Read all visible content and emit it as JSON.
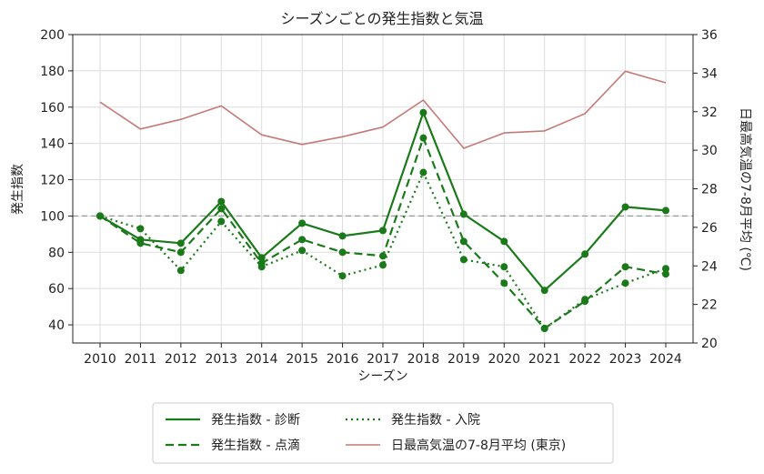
{
  "chart_data": {
    "type": "line",
    "title": "シーズンごとの発生指数と気温",
    "xlabel": "シーズン",
    "ylabel": "発生指数",
    "y2label": "日最高気温の7-8月平均 (℃)",
    "categories": [
      "2010",
      "2011",
      "2012",
      "2013",
      "2014",
      "2015",
      "2016",
      "2017",
      "2018",
      "2019",
      "2020",
      "2021",
      "2022",
      "2023",
      "2024"
    ],
    "ylim": [
      30,
      200
    ],
    "yticks": [
      40,
      60,
      80,
      100,
      120,
      140,
      160,
      180,
      200
    ],
    "y2lim": [
      20,
      36
    ],
    "y2ticks": [
      20,
      22,
      24,
      26,
      28,
      30,
      32,
      34,
      36
    ],
    "reference_line": 100,
    "grid": true,
    "legend_position": "bottom",
    "series": [
      {
        "name": "発生指数 - 診断",
        "axis": "left",
        "style": "solid",
        "color": "#1a7a1a",
        "values": [
          100,
          87,
          85,
          108,
          77,
          96,
          89,
          92,
          157,
          101,
          86,
          59,
          79,
          105,
          103
        ]
      },
      {
        "name": "発生指数 - 点滴",
        "axis": "left",
        "style": "dashed",
        "color": "#1a7a1a",
        "values": [
          100,
          85,
          80,
          104,
          74,
          87,
          80,
          78,
          143,
          86,
          63,
          38,
          53,
          72,
          68
        ]
      },
      {
        "name": "発生指数 - 入院",
        "axis": "left",
        "style": "dotted",
        "color": "#1a7a1a",
        "values": [
          100,
          93,
          70,
          97,
          72,
          81,
          67,
          73,
          124,
          76,
          72,
          38,
          54,
          63,
          71
        ]
      },
      {
        "name": "日最高気温の7-8月平均 (東京)",
        "axis": "right",
        "style": "solid",
        "color": "#c47a78",
        "values": [
          32.5,
          31.1,
          31.6,
          32.3,
          30.8,
          30.3,
          30.7,
          31.2,
          32.6,
          30.1,
          30.9,
          31.0,
          31.9,
          34.1,
          33.5
        ]
      }
    ]
  }
}
